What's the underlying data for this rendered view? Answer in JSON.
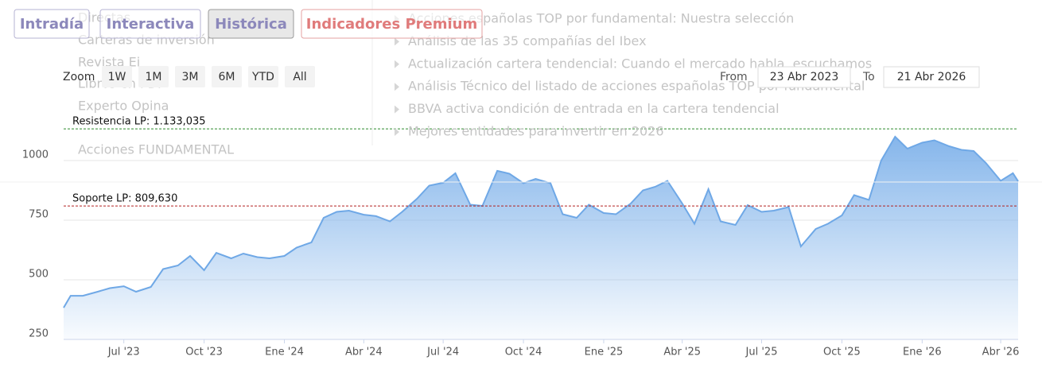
{
  "nav": {
    "buttons": [
      "Intradía",
      "Interactiva",
      "Histórica",
      "Indicadores Premium"
    ],
    "active": 2
  },
  "menu": {
    "left": [
      "Directas",
      "Carteras de inversión",
      "Revista Ei",
      "Libros en PDF",
      "Experto Opina",
      "Acciones FUNDAMENTAL"
    ],
    "right": [
      "Acciones españolas TOP por fundamental: Nuestra selección",
      "Análisis de las 35 compañías del Ibex",
      "Actualización cartera tendencial: Cuando el mercado habla, escuchamos",
      "Análisis Técnico del listado de acciones españolas TOP por fundamental",
      "BBVA activa condición de entrada en la cartera tendencial",
      "Mejores entidades para invertir en 2026"
    ]
  },
  "range_selector": {
    "zoom_label": "Zoom",
    "buttons": [
      "1W",
      "1M",
      "3M",
      "6M",
      "YTD",
      "All"
    ],
    "from_label": "From",
    "from": "23 Abr 2023",
    "to_label": "To",
    "to": "21 Abr 2026"
  },
  "chart_data": {
    "type": "area",
    "color": "#6fa8e6",
    "x": [
      "2023-04-23",
      "2023-05-01",
      "2023-05-15",
      "2023-06-01",
      "2023-06-15",
      "2023-07-01",
      "2023-07-15",
      "2023-08-01",
      "2023-08-15",
      "2023-09-01",
      "2023-09-15",
      "2023-10-01",
      "2023-10-15",
      "2023-11-01",
      "2023-11-15",
      "2023-12-01",
      "2023-12-15",
      "2024-01-01",
      "2024-01-15",
      "2024-02-01",
      "2024-02-15",
      "2024-03-01",
      "2024-03-15",
      "2024-04-01",
      "2024-04-15",
      "2024-05-01",
      "2024-05-15",
      "2024-06-01",
      "2024-06-15",
      "2024-07-01",
      "2024-07-15",
      "2024-08-01",
      "2024-08-15",
      "2024-09-01",
      "2024-09-15",
      "2024-10-01",
      "2024-10-15",
      "2024-11-01",
      "2024-11-15",
      "2024-12-01",
      "2024-12-15",
      "2025-01-01",
      "2025-01-15",
      "2025-02-01",
      "2025-02-15",
      "2025-03-01",
      "2025-03-15",
      "2025-04-01",
      "2025-04-15",
      "2025-05-01",
      "2025-05-15",
      "2025-06-01",
      "2025-06-15",
      "2025-07-01",
      "2025-07-15",
      "2025-08-01",
      "2025-08-15",
      "2025-09-01",
      "2025-09-15",
      "2025-10-01",
      "2025-10-15",
      "2025-11-01",
      "2025-11-15",
      "2025-12-01",
      "2025-12-15",
      "2026-01-01",
      "2026-01-15",
      "2026-02-01",
      "2026-02-15",
      "2026-03-01",
      "2026-03-15",
      "2026-04-01",
      "2026-04-15",
      "2026-04-21"
    ],
    "values": [
      383,
      433,
      433,
      450,
      465,
      473,
      450,
      470,
      545,
      560,
      600,
      540,
      613,
      590,
      610,
      595,
      590,
      600,
      635,
      657,
      760,
      785,
      790,
      773,
      767,
      745,
      785,
      840,
      895,
      907,
      947,
      815,
      810,
      957,
      945,
      905,
      923,
      905,
      775,
      760,
      815,
      780,
      775,
      820,
      875,
      890,
      915,
      820,
      735,
      880,
      745,
      730,
      813,
      785,
      790,
      805,
      640,
      713,
      735,
      770,
      855,
      835,
      1000,
      1100,
      1050,
      1075,
      1085,
      1060,
      1045,
      1040,
      990,
      915,
      947,
      913
    ],
    "xlim": [
      "2023-04-23",
      "2026-04-21"
    ],
    "xticks": [
      {
        "value": "2023-07-01",
        "label": "Jul '23"
      },
      {
        "value": "2023-10-01",
        "label": "Oct '23"
      },
      {
        "value": "2024-01-01",
        "label": "Ene '24"
      },
      {
        "value": "2024-04-01",
        "label": "Abr '24"
      },
      {
        "value": "2024-07-01",
        "label": "Jul '24"
      },
      {
        "value": "2024-10-01",
        "label": "Oct '24"
      },
      {
        "value": "2025-01-01",
        "label": "Ene '25"
      },
      {
        "value": "2025-04-01",
        "label": "Abr '25"
      },
      {
        "value": "2025-07-01",
        "label": "Jul '25"
      },
      {
        "value": "2025-10-01",
        "label": "Oct '25"
      },
      {
        "value": "2026-01-01",
        "label": "Ene '26"
      },
      {
        "value": "2026-04-01",
        "label": "Abr '26"
      }
    ],
    "ylim": [
      250,
      1250
    ],
    "yticks": [
      250,
      500,
      750,
      1000
    ],
    "grid": true,
    "lines": [
      {
        "label": "Resistencia LP: 1.133,035",
        "value": 1133.035,
        "color": "#2e8b2e"
      },
      {
        "label": "Soporte LP: 809,630",
        "value": 809.63,
        "color": "#b22222"
      }
    ]
  }
}
